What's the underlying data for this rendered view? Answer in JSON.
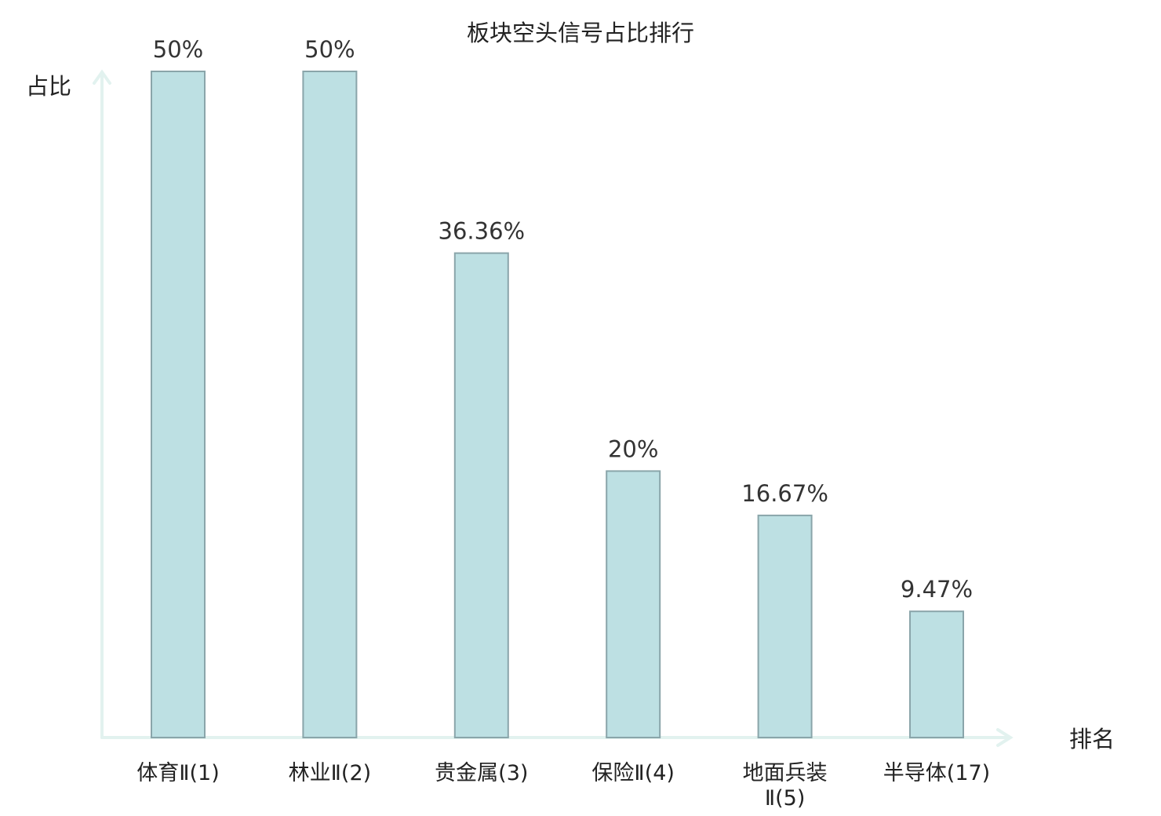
{
  "chart_data": {
    "type": "bar",
    "title": "板块空头信号占比排行",
    "ylabel": "占比",
    "xlabel": "排名",
    "ylim": [
      0,
      50
    ],
    "grid": false,
    "legend": "none",
    "categories": [
      "体育Ⅱ(1)",
      "林业Ⅱ(2)",
      "贵金属(3)",
      "保险Ⅱ(4)",
      "地面兵装Ⅱ(5)",
      "半导体(17)"
    ],
    "categories_display": [
      {
        "name": "体育Ⅱ",
        "rank": "(1)"
      },
      {
        "name": "林业Ⅱ",
        "rank": "(2)"
      },
      {
        "name": "贵金属",
        "rank": "(3)"
      },
      {
        "name": "保险Ⅱ",
        "rank": "(4)"
      },
      {
        "name": "地面兵装",
        "name2": "Ⅱ",
        "rank": "(5)"
      },
      {
        "name": "半导体",
        "rank": "(17)",
        "highlight": true
      }
    ],
    "values": [
      50,
      50,
      36.36,
      20,
      16.67,
      9.47
    ],
    "value_labels": [
      "50%",
      "50%",
      "36.36%",
      "20%",
      "16.67%",
      "9.47%"
    ],
    "colors": {
      "bar_fill": "#bde0e3",
      "bar_stroke": "#8aa5aa",
      "axis": "#e2f2ef",
      "highlight_text": "#e02020",
      "text": "#222222"
    }
  }
}
